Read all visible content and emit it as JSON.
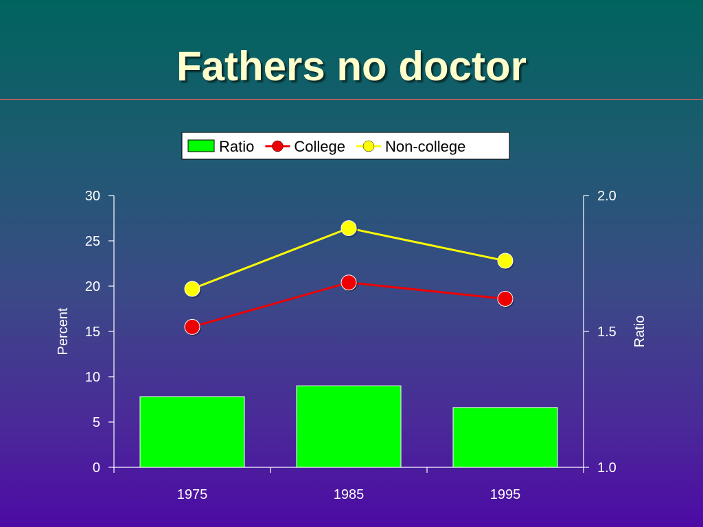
{
  "slide": {
    "title": "Fathers no doctor"
  },
  "chart_data": {
    "type": "bar",
    "title": "",
    "categories": [
      "1975",
      "1985",
      "1995"
    ],
    "series": [
      {
        "name": "Ratio",
        "type": "bar",
        "axis": "right",
        "values": [
          1.26,
          1.3,
          1.22
        ],
        "color": "#00ff00"
      },
      {
        "name": "College",
        "type": "line",
        "axis": "left",
        "values": [
          15.5,
          20.4,
          18.6
        ],
        "color": "#ee0000"
      },
      {
        "name": "Non-college",
        "type": "line",
        "axis": "left",
        "values": [
          19.7,
          26.4,
          22.8
        ],
        "color": "#ffff00"
      }
    ],
    "ylabel": "Percent",
    "ylim": [
      0,
      30
    ],
    "yticks": [
      "0",
      "5",
      "10",
      "15",
      "20",
      "25",
      "30"
    ],
    "y2label": "Ratio",
    "y2lim": [
      1.0,
      2.0
    ],
    "y2ticks": [
      "1.0",
      "1.5",
      "2.0"
    ],
    "grid": false,
    "legend": "top"
  }
}
